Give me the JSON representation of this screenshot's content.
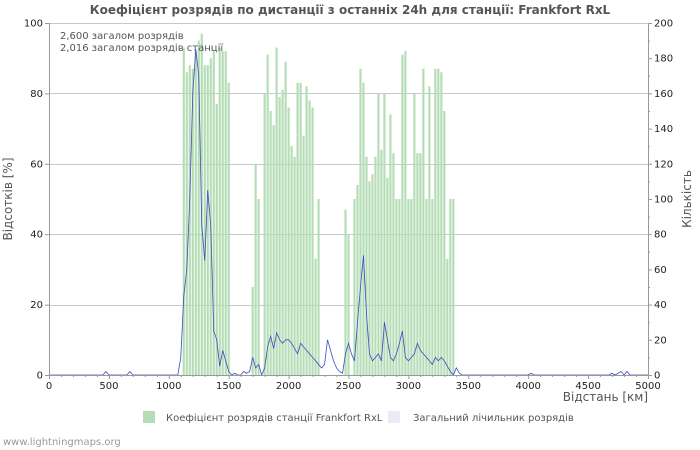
{
  "chart_data": {
    "type": "bar",
    "title": "Коефіцієнт розрядів по дистанції з останніх 24h для станції: Frankfort RxL",
    "notes": [
      "2,600 загалом розрядів",
      "2,016 загалом розрядів станції"
    ],
    "xlabel": "Відстань   [км]",
    "ylabel_left": "Відсотків   [%]",
    "ylabel_right": "Кількість",
    "xlim": [
      0,
      5000
    ],
    "ylim_left": [
      0,
      100
    ],
    "ylim_right": [
      0,
      200
    ],
    "x_ticks": [
      0,
      500,
      1000,
      1500,
      2000,
      2500,
      3000,
      3500,
      4000,
      4500,
      5000
    ],
    "y_left_ticks": [
      0,
      20,
      40,
      60,
      80,
      100
    ],
    "y_right_ticks": [
      0,
      20,
      40,
      60,
      80,
      100,
      120,
      140,
      160,
      180,
      200
    ],
    "colors": {
      "bar": "#b5ddb5",
      "line": "#3c4dbd",
      "grid": "#c8c8c8",
      "axis": "#999999"
    },
    "series": [
      {
        "name": "Коефіцієнт розрядів станції Frankfort RxL",
        "axis": "left",
        "kind": "bar",
        "bin_width_km": 25,
        "x": [
          1125,
          1150,
          1175,
          1200,
          1225,
          1250,
          1275,
          1300,
          1325,
          1350,
          1375,
          1400,
          1425,
          1450,
          1475,
          1500,
          1700,
          1725,
          1750,
          1800,
          1825,
          1850,
          1875,
          1900,
          1925,
          1950,
          1975,
          2000,
          2025,
          2050,
          2075,
          2100,
          2125,
          2150,
          2175,
          2200,
          2225,
          2250,
          2475,
          2500,
          2550,
          2575,
          2600,
          2625,
          2650,
          2675,
          2700,
          2725,
          2750,
          2775,
          2800,
          2825,
          2850,
          2875,
          2900,
          2925,
          2950,
          2975,
          3000,
          3025,
          3050,
          3075,
          3100,
          3125,
          3150,
          3175,
          3200,
          3225,
          3250,
          3275,
          3300,
          3325,
          3350,
          3375
        ],
        "values": [
          93,
          86,
          88,
          87,
          92,
          95,
          97,
          88,
          88,
          90,
          92,
          77,
          93,
          92,
          92,
          83,
          25,
          60,
          50,
          80,
          91,
          75,
          71,
          93,
          79,
          81,
          89,
          76,
          65,
          62,
          83,
          83,
          68,
          82,
          78,
          76,
          33,
          50,
          47,
          40,
          50,
          54,
          87,
          83,
          62,
          55,
          57,
          62,
          80,
          64,
          80,
          56,
          74,
          63,
          50,
          50,
          91,
          92,
          50,
          50,
          80,
          63,
          63,
          87,
          50,
          82,
          50,
          87,
          87,
          86,
          75,
          33,
          50,
          50
        ]
      },
      {
        "name": "Загальний лічильник розрядів",
        "axis": "right",
        "kind": "line",
        "x": [
          0,
          450,
          475,
          500,
          525,
          550,
          650,
          675,
          700,
          725,
          1075,
          1100,
          1125,
          1150,
          1175,
          1200,
          1225,
          1250,
          1275,
          1300,
          1325,
          1350,
          1375,
          1400,
          1425,
          1450,
          1475,
          1500,
          1525,
          1550,
          1575,
          1600,
          1625,
          1650,
          1675,
          1700,
          1725,
          1750,
          1775,
          1800,
          1825,
          1850,
          1875,
          1900,
          1925,
          1950,
          1975,
          2000,
          2025,
          2050,
          2075,
          2100,
          2125,
          2150,
          2175,
          2200,
          2225,
          2250,
          2275,
          2300,
          2325,
          2350,
          2375,
          2400,
          2425,
          2450,
          2475,
          2500,
          2525,
          2550,
          2575,
          2600,
          2625,
          2650,
          2675,
          2700,
          2725,
          2750,
          2775,
          2800,
          2825,
          2850,
          2875,
          2900,
          2925,
          2950,
          2975,
          3000,
          3025,
          3050,
          3075,
          3100,
          3125,
          3150,
          3175,
          3200,
          3225,
          3250,
          3275,
          3300,
          3325,
          3350,
          3375,
          3400,
          3425,
          3450,
          3475,
          4000,
          4025,
          4050,
          4675,
          4700,
          4725,
          4775,
          4800,
          4825,
          4850,
          5000
        ],
        "values": [
          0,
          0,
          2,
          0,
          0,
          0,
          0,
          2,
          0,
          0,
          0,
          10,
          45,
          60,
          100,
          160,
          185,
          170,
          85,
          65,
          105,
          85,
          25,
          20,
          5,
          14,
          8,
          2,
          0,
          1,
          0,
          0,
          2,
          1,
          2,
          10,
          4,
          6,
          0,
          4,
          16,
          22,
          15,
          24,
          20,
          18,
          20,
          20,
          18,
          15,
          12,
          18,
          16,
          14,
          12,
          10,
          8,
          6,
          4,
          6,
          20,
          14,
          8,
          4,
          2,
          1,
          12,
          18,
          12,
          8,
          30,
          50,
          68,
          35,
          12,
          8,
          10,
          12,
          8,
          30,
          20,
          10,
          8,
          12,
          18,
          25,
          10,
          8,
          10,
          12,
          18,
          14,
          12,
          10,
          8,
          6,
          10,
          8,
          10,
          8,
          5,
          2,
          0,
          4,
          1,
          0,
          0,
          0,
          1,
          0,
          0,
          1,
          0,
          2,
          0,
          2,
          0,
          0
        ]
      }
    ],
    "legend": [
      {
        "label": "Коефіцієнт розрядів станції Frankfort RxL",
        "color": "#b5ddb5"
      },
      {
        "label": "Загальний лічильник розрядів",
        "color": "#e8e8f8"
      }
    ]
  },
  "footer": {
    "credit": "www.lightningmaps.org"
  }
}
